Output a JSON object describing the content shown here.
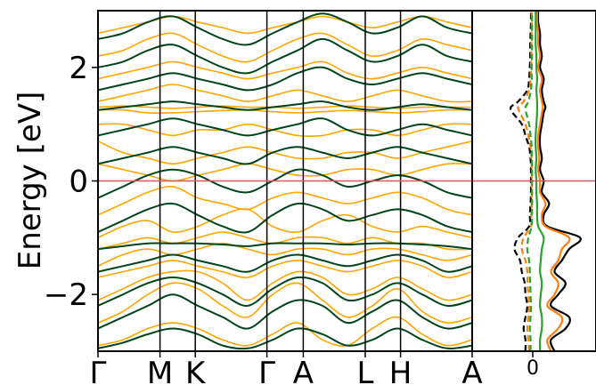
{
  "chart_data": [
    {
      "type": "line",
      "ylabel": "Energy [eV]",
      "ylim": [
        -3.0,
        3.0
      ],
      "yticks": [
        -2,
        0,
        2
      ],
      "ytick_labels": [
        "−2",
        "0",
        "2"
      ],
      "kpath_labels": [
        "Γ",
        "M",
        "K",
        "Γ",
        "A",
        "L",
        "H",
        "A"
      ],
      "kpath_positions": [
        0.0,
        0.58,
        0.91,
        1.58,
        1.92,
        2.5,
        2.83,
        3.5
      ],
      "xlim": [
        0.0,
        3.5
      ],
      "fermi_level": 0.0,
      "grid": false,
      "colors": {
        "spin_up": "#ffa500",
        "spin_down": "#00441b",
        "fermi": "#cd5c5c",
        "kpath_lines": "#000000"
      },
      "series": [],
      "bands": {
        "spin_up": [
          {
            "name": "",
            "values": [
              [
                -2.9,
                -2.8,
                -2.6,
                -2.5,
                -2.6,
                -2.8,
                -2.9,
                -2.7,
                -2.5,
                -2.8,
                -2.9,
                -2.6,
                -2.4,
                -2.7,
                -2.9,
                -2.8
              ],
              [
                -2.5,
                -2.3,
                -2.0,
                -1.8,
                -1.9,
                -2.2,
                -2.4,
                -2.0,
                -1.8,
                -2.1,
                -2.4,
                -2.2,
                -1.9,
                -2.3,
                -2.5,
                -2.4
              ],
              [
                -2.1,
                -1.9,
                -1.7,
                -1.6,
                -1.6,
                -1.8,
                -2.1,
                -1.8,
                -1.6,
                -1.7,
                -2.0,
                -1.9,
                -1.7,
                -1.9,
                -2.1,
                -2.0
              ],
              [
                -1.7,
                -1.6,
                -1.5,
                -1.4,
                -1.5,
                -1.6,
                -1.7,
                -1.5,
                -1.4,
                -1.5,
                -1.6,
                -1.5,
                -1.4,
                -1.5,
                -1.7,
                -1.6
              ],
              [
                -1.5,
                -1.3,
                -1.2,
                -1.3,
                -1.2,
                -1.1,
                -1.2,
                -1.3,
                -1.2,
                -1.2,
                -1.3,
                -1.2,
                -1.2,
                -1.3,
                -1.4,
                -1.3
              ],
              [
                -1.2,
                -1.1,
                -1.0,
                -1.1,
                -1.0,
                -0.9,
                -1.0,
                -1.1,
                -1.0,
                -1.0,
                -1.1,
                -1.0,
                -1.1,
                -1.1,
                -1.2,
                -1.2
              ],
              [
                -1.0,
                -0.8,
                -0.7,
                -0.9,
                -0.8,
                -0.6,
                -0.5,
                -0.8,
                -0.9,
                -0.7,
                -0.6,
                -0.8,
                -0.9,
                -0.8,
                -0.9,
                -1.0
              ],
              [
                -0.6,
                -0.4,
                -0.2,
                -0.1,
                -0.3,
                -0.4,
                -0.5,
                -0.3,
                -0.2,
                -0.3,
                -0.4,
                -0.3,
                -0.2,
                -0.3,
                -0.5,
                -0.6
              ],
              [
                0.3,
                0.2,
                0.1,
                0.0,
                0.1,
                0.2,
                0.3,
                0.2,
                0.1,
                0.1,
                0.2,
                0.2,
                0.1,
                0.2,
                0.3,
                0.3
              ],
              [
                0.7,
                0.5,
                0.4,
                0.3,
                0.4,
                0.5,
                0.6,
                0.5,
                0.4,
                0.4,
                0.5,
                0.5,
                0.4,
                0.5,
                0.6,
                0.7
              ],
              [
                1.0,
                1.0,
                0.9,
                0.8,
                0.9,
                0.9,
                1.0,
                0.9,
                0.8,
                0.8,
                0.9,
                0.9,
                0.8,
                0.9,
                1.0,
                1.0
              ],
              [
                1.25,
                1.25,
                1.2,
                1.2,
                1.22,
                1.24,
                1.25,
                1.22,
                1.2,
                1.22,
                1.24,
                1.22,
                1.2,
                1.22,
                1.25,
                1.25
              ],
              [
                1.3,
                1.32,
                1.3,
                1.28,
                1.3,
                1.32,
                1.3,
                1.3,
                1.28,
                1.3,
                1.32,
                1.3,
                1.28,
                1.3,
                1.3,
                1.3
              ],
              [
                1.4,
                1.5,
                1.6,
                1.7,
                1.6,
                1.5,
                1.4,
                1.5,
                1.6,
                1.5,
                1.4,
                1.5,
                1.6,
                1.5,
                1.4,
                1.4
              ],
              [
                1.8,
                1.9,
                2.0,
                2.1,
                2.0,
                1.9,
                1.8,
                1.9,
                2.0,
                2.1,
                1.9,
                1.8,
                1.9,
                2.0,
                1.9,
                1.8
              ],
              [
                2.2,
                2.3,
                2.5,
                2.6,
                2.4,
                2.2,
                2.1,
                2.3,
                2.5,
                2.6,
                2.4,
                2.2,
                2.3,
                2.5,
                2.4,
                2.3
              ],
              [
                2.6,
                2.7,
                2.8,
                2.9,
                2.8,
                2.7,
                2.6,
                2.7,
                2.8,
                2.9,
                2.8,
                2.7,
                2.8,
                2.9,
                2.8,
                2.7
              ]
            ]
          }
        ],
        "spin_down": [
          {
            "name": "",
            "values": [
              [
                -2.95,
                -2.85,
                -2.7,
                -2.6,
                -2.7,
                -2.9,
                -2.95,
                -2.8,
                -2.6,
                -2.7,
                -2.9,
                -2.8,
                -2.6,
                -2.8,
                -2.95,
                -2.9
              ],
              [
                -2.6,
                -2.4,
                -2.2,
                -2.0,
                -2.2,
                -2.4,
                -2.6,
                -2.3,
                -2.1,
                -2.2,
                -2.5,
                -2.3,
                -2.1,
                -2.4,
                -2.6,
                -2.5
              ],
              [
                -2.2,
                -2.0,
                -1.8,
                -1.7,
                -1.8,
                -2.0,
                -2.2,
                -1.9,
                -1.7,
                -1.8,
                -2.1,
                -2.0,
                -1.8,
                -2.0,
                -2.2,
                -2.1
              ],
              [
                -1.6,
                -1.5,
                -1.4,
                -1.3,
                -1.4,
                -1.5,
                -1.6,
                -1.4,
                -1.3,
                -1.4,
                -1.5,
                -1.4,
                -1.3,
                -1.4,
                -1.6,
                -1.5
              ],
              [
                -1.2,
                -1.15,
                -1.1,
                -1.1,
                -1.1,
                -1.12,
                -1.15,
                -1.1,
                -1.1,
                -1.1,
                -1.12,
                -1.1,
                -1.1,
                -1.12,
                -1.15,
                -1.2
              ],
              [
                -0.9,
                -0.7,
                -0.5,
                -0.4,
                -0.6,
                -0.8,
                -0.9,
                -0.6,
                -0.4,
                -0.5,
                -0.7,
                -0.6,
                -0.5,
                -0.6,
                -0.8,
                -0.9
              ],
              [
                -0.3,
                -0.1,
                0.1,
                0.2,
                0.1,
                -0.1,
                -0.2,
                0.0,
                0.2,
                0.1,
                -0.1,
                0.0,
                0.1,
                0.0,
                -0.2,
                -0.3
              ],
              [
                0.3,
                0.4,
                0.5,
                0.6,
                0.5,
                0.4,
                0.3,
                0.5,
                0.6,
                0.5,
                0.4,
                0.5,
                0.6,
                0.5,
                0.4,
                0.3
              ],
              [
                0.8,
                0.9,
                1.0,
                1.1,
                1.0,
                0.9,
                0.8,
                0.9,
                1.0,
                1.1,
                0.9,
                0.8,
                0.9,
                1.0,
                0.9,
                0.8
              ],
              [
                1.25,
                1.3,
                1.35,
                1.4,
                1.35,
                1.3,
                1.25,
                1.3,
                1.35,
                1.4,
                1.3,
                1.25,
                1.3,
                1.35,
                1.3,
                1.25
              ],
              [
                1.6,
                1.7,
                1.8,
                1.9,
                1.8,
                1.7,
                1.6,
                1.7,
                1.9,
                2.0,
                1.8,
                1.7,
                1.8,
                1.9,
                1.8,
                1.7
              ],
              [
                2.0,
                2.1,
                2.3,
                2.4,
                2.2,
                2.0,
                1.9,
                2.1,
                2.3,
                2.5,
                2.3,
                2.1,
                2.2,
                2.4,
                2.2,
                2.1
              ],
              [
                2.5,
                2.6,
                2.8,
                2.9,
                2.7,
                2.5,
                2.4,
                2.6,
                2.8,
                2.95,
                2.8,
                2.6,
                2.7,
                2.9,
                2.7,
                2.6
              ]
            ]
          }
        ]
      }
    },
    {
      "type": "line",
      "xtick_labels": [
        "0"
      ],
      "xticks": [
        0
      ],
      "ylim": [
        -3.0,
        3.0
      ],
      "xlim": [
        -1.6,
        1.8
      ],
      "colors": {
        "total": "#000000",
        "orange_dashed": "#ff7f0e",
        "green_dashed": "#2ca02c",
        "black_dashed": "#000000",
        "fermi": "#cd5c5c"
      },
      "energy": [
        -3.0,
        -2.8,
        -2.6,
        -2.4,
        -2.2,
        -2.0,
        -1.8,
        -1.6,
        -1.4,
        -1.2,
        -1.0,
        -0.8,
        -0.6,
        -0.4,
        -0.2,
        0.0,
        0.2,
        0.4,
        0.6,
        0.8,
        1.0,
        1.2,
        1.3,
        1.4,
        1.6,
        1.8,
        2.0,
        2.2,
        2.4,
        2.6,
        2.8,
        3.0
      ],
      "series": [
        {
          "values": [
            0.6,
            0.5,
            0.9,
            1.0,
            0.5,
            0.7,
            0.9,
            0.6,
            0.8,
            1.0,
            1.3,
            0.4,
            0.3,
            0.45,
            0.25,
            0.3,
            0.2,
            0.25,
            0.2,
            0.2,
            0.25,
            0.3,
            0.35,
            0.3,
            0.25,
            0.3,
            0.2,
            0.25,
            0.2,
            0.2,
            0.15,
            0.15
          ]
        },
        {
          "values": [
            0.5,
            0.4,
            0.7,
            0.8,
            0.4,
            0.6,
            0.7,
            0.5,
            0.7,
            0.8,
            1.0,
            0.35,
            0.25,
            0.35,
            0.2,
            0.2,
            0.15,
            0.18,
            0.15,
            0.15,
            0.2,
            0.25,
            0.28,
            0.25,
            0.2,
            0.25,
            0.15,
            0.2,
            0.15,
            0.15,
            0.12,
            0.12
          ]
        },
        {
          "values": [
            0.2,
            0.2,
            0.25,
            0.25,
            0.2,
            0.22,
            0.25,
            0.2,
            0.22,
            0.25,
            0.3,
            0.15,
            0.12,
            0.12,
            0.1,
            0.1,
            0.08,
            0.1,
            0.08,
            0.08,
            0.1,
            0.12,
            0.12,
            0.12,
            0.1,
            0.12,
            0.1,
            0.1,
            0.08,
            0.08,
            0.08,
            0.08
          ]
        },
        {
          "values": [
            -0.2,
            -0.2,
            -0.25,
            -0.2,
            -0.15,
            -0.2,
            -0.22,
            -0.3,
            -0.35,
            -0.5,
            -0.4,
            -0.1,
            -0.08,
            -0.06,
            -0.05,
            -0.05,
            -0.05,
            -0.06,
            -0.1,
            -0.2,
            -0.3,
            -0.55,
            -0.6,
            -0.4,
            -0.15,
            -0.1,
            -0.08,
            -0.07,
            -0.07,
            -0.06,
            -0.05,
            -0.05
          ]
        },
        {
          "values": [
            -0.1,
            -0.12,
            -0.15,
            -0.12,
            -0.1,
            -0.12,
            -0.14,
            -0.15,
            -0.2,
            -0.3,
            -0.25,
            -0.05,
            -0.04,
            -0.03,
            -0.03,
            -0.03,
            -0.03,
            -0.04,
            -0.06,
            -0.12,
            -0.2,
            -0.35,
            -0.4,
            -0.25,
            -0.1,
            -0.06,
            -0.05,
            -0.04,
            -0.04,
            -0.03,
            -0.03,
            -0.03
          ]
        },
        {
          "values": [
            -0.06,
            -0.06,
            -0.08,
            -0.06,
            -0.05,
            -0.06,
            -0.07,
            -0.08,
            -0.1,
            -0.15,
            -0.12,
            -0.03,
            -0.02,
            -0.02,
            -0.02,
            -0.02,
            -0.02,
            -0.02,
            -0.03,
            -0.06,
            -0.1,
            -0.18,
            -0.2,
            -0.12,
            -0.05,
            -0.03,
            -0.03,
            -0.02,
            -0.02,
            -0.02,
            -0.02,
            -0.02
          ]
        }
      ]
    }
  ]
}
